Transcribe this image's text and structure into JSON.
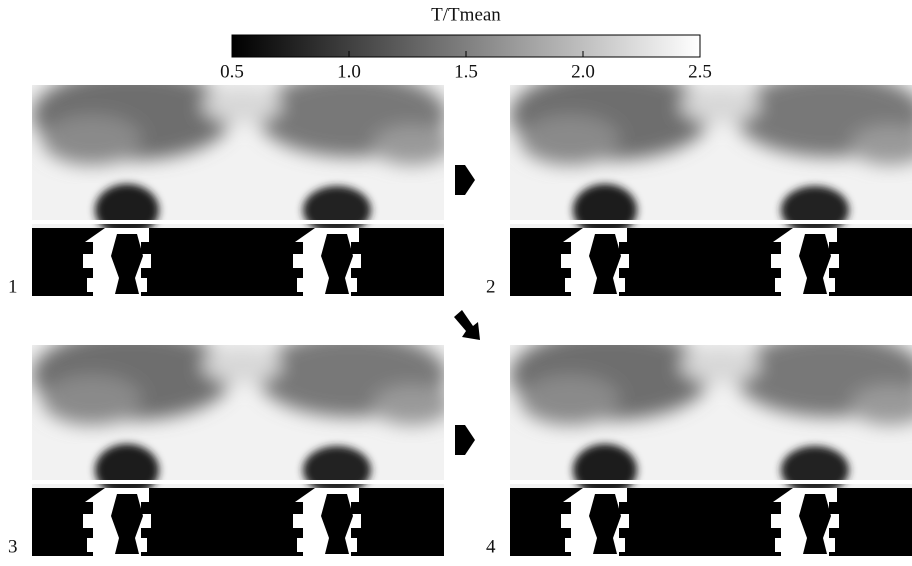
{
  "colorbar": {
    "title": "T/Tmean",
    "lim": [
      0.5,
      2.5
    ],
    "colors": [
      "#000000",
      "#ffffff"
    ],
    "ticks": [
      {
        "value": 0.5,
        "label": "0.5"
      },
      {
        "value": 1,
        "label": "1.0"
      },
      {
        "value": 1.5,
        "label": "1.5"
      },
      {
        "value": 2,
        "label": "2.0"
      },
      {
        "value": 2.5,
        "label": "2.5"
      }
    ]
  },
  "panels": [
    {
      "label": "1"
    },
    {
      "label": "2"
    },
    {
      "label": "3"
    },
    {
      "label": "4"
    }
  ]
}
